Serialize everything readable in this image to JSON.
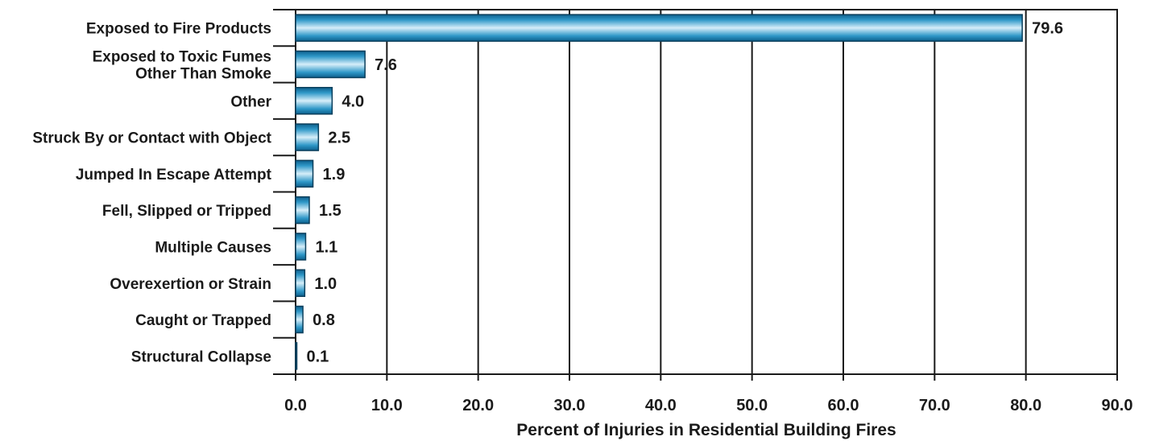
{
  "chart_data": {
    "type": "bar",
    "orientation": "horizontal",
    "categories": [
      [
        "Exposed to Fire Products"
      ],
      [
        "Exposed to Toxic Fumes",
        "Other Than Smoke"
      ],
      [
        "Other"
      ],
      [
        "Struck By or Contact with Object"
      ],
      [
        "Jumped In Escape Attempt"
      ],
      [
        "Fell, Slipped or Tripped"
      ],
      [
        "Multiple Causes"
      ],
      [
        "Overexertion or Strain"
      ],
      [
        "Caught or Trapped"
      ],
      [
        "Structural Collapse"
      ]
    ],
    "values": [
      79.6,
      7.6,
      4.0,
      2.5,
      1.9,
      1.5,
      1.1,
      1.0,
      0.8,
      0.1
    ],
    "value_labels": [
      "79.6",
      "7.6",
      "4.0",
      "2.5",
      "1.9",
      "1.5",
      "1.1",
      "1.0",
      "0.8",
      "0.1"
    ],
    "xlim": [
      0,
      90
    ],
    "xticks": [
      "0.0",
      "10.0",
      "20.0",
      "30.0",
      "40.0",
      "50.0",
      "60.0",
      "70.0",
      "80.0",
      "90.0"
    ],
    "xlabel": "Percent of Injuries in Residential Building Fires",
    "grid": "vertical",
    "bar_color": "#1a86b8"
  }
}
